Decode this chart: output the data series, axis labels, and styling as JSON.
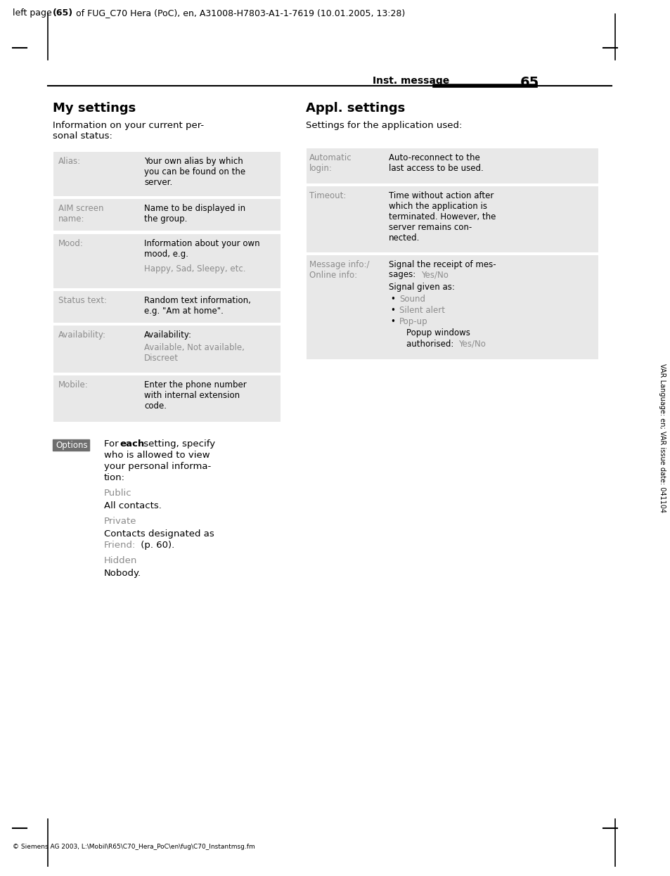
{
  "header_text": "left page (65) of FUG_C70 Hera (PoC), en, A31008-H7803-A1-1-7619 (10.01.2005, 13:28)",
  "page_header_label": "Inst. message",
  "page_number": "65",
  "side_text": "VAR Language: en; VAR issue date: 041104",
  "footer_left": "© Siemens AG 2003, L:\\Mobil\\R65\\C70_Hera_PoC\\en\\fug\\C70_Instantmsg.fm",
  "section1_title": "My settings",
  "section1_intro": "Information on your current per-\nsonal status:",
  "section2_title": "Appl. settings",
  "section2_intro": "Settings for the application used:",
  "gray_color": "#8c8c8c",
  "table_bg_light": "#e8e8e8",
  "options_bg": "#6e6e6e",
  "black": "#000000"
}
